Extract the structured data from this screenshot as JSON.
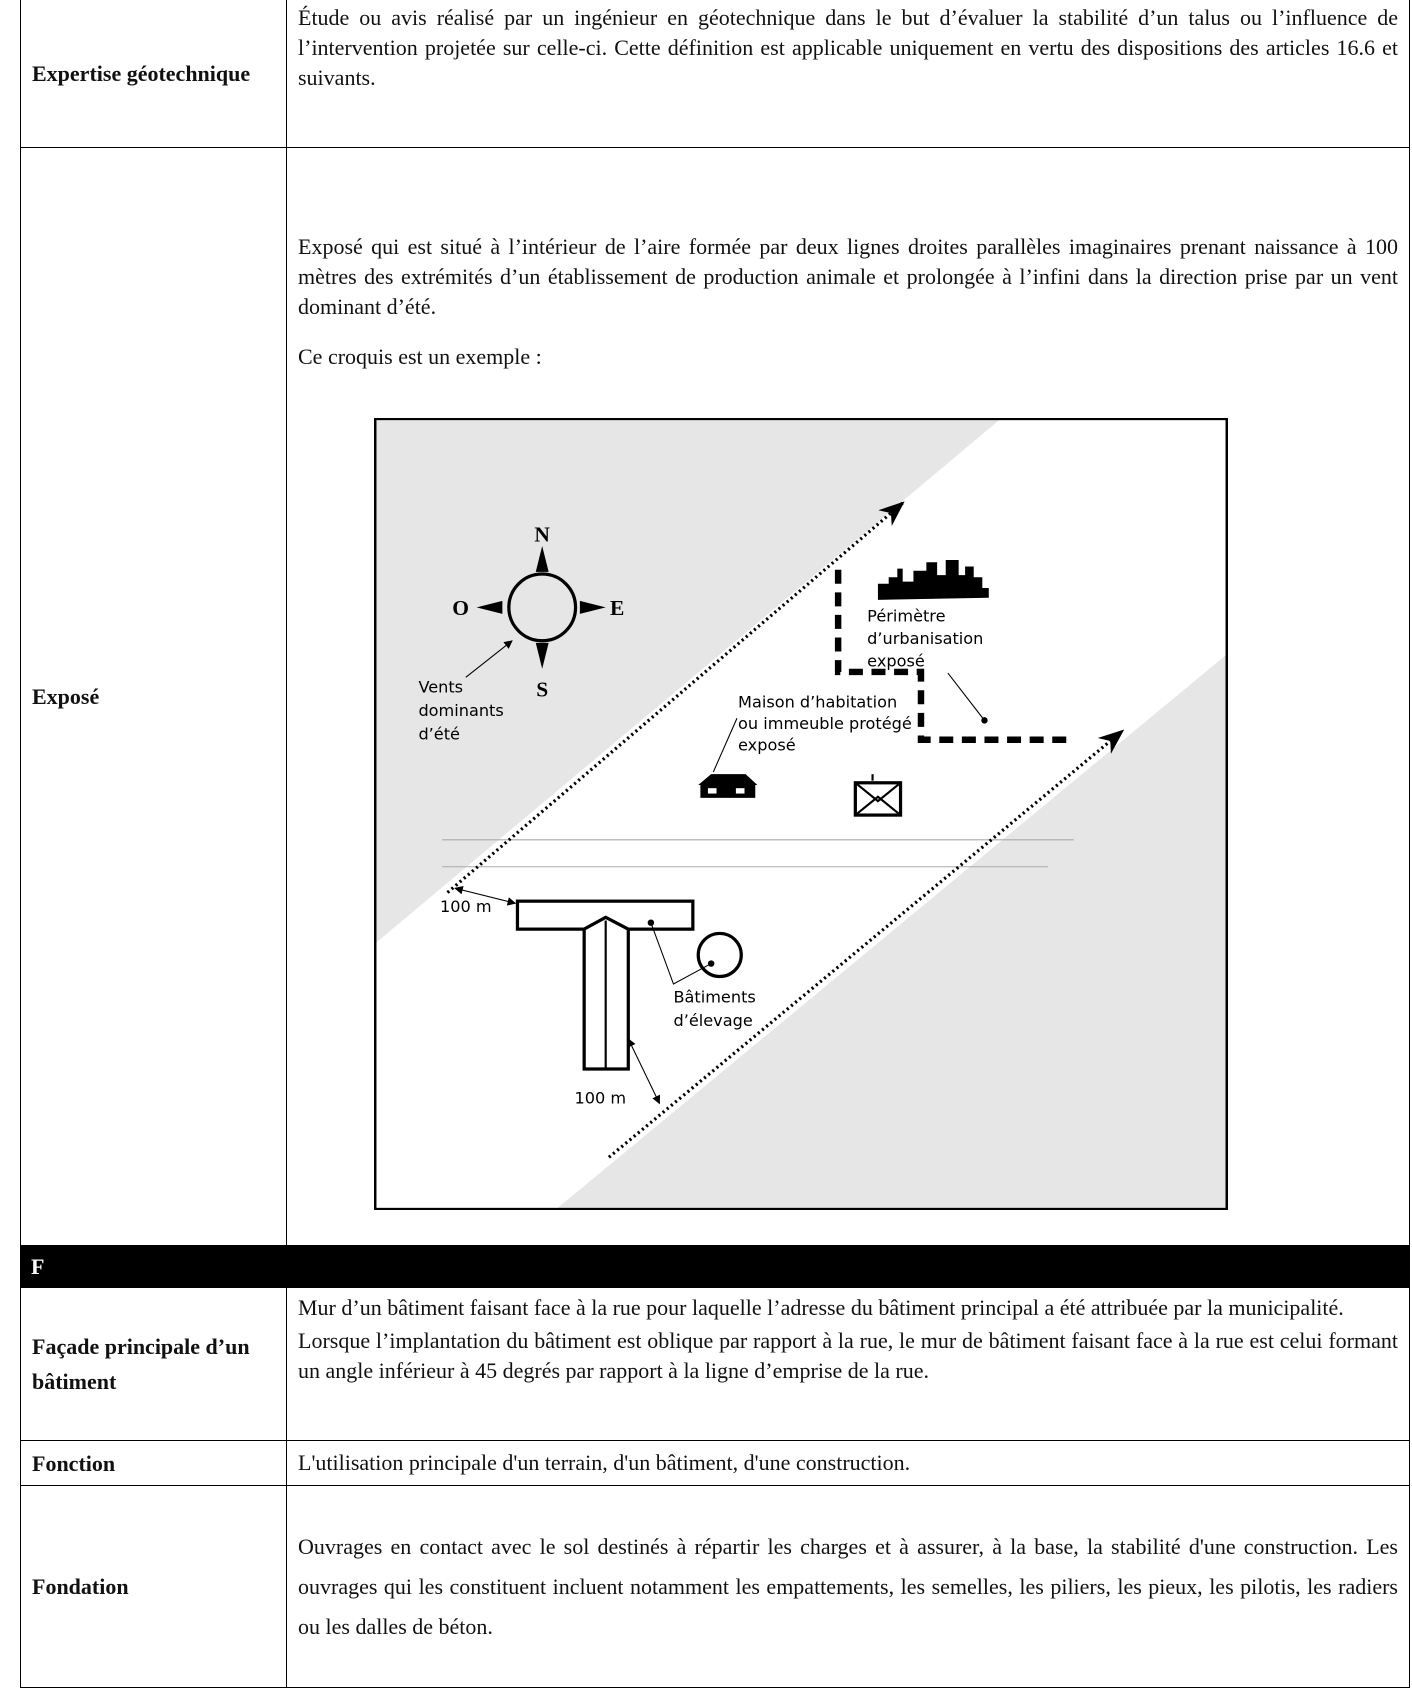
{
  "rows": [
    {
      "term": "Expertise géotechnique",
      "paragraphs": [
        "Étude ou avis réalisé par un ingénieur en géotechnique dans le but d’évaluer la stabilité d’un talus ou l’influence de l’intervention projetée sur celle-ci. Cette définition est applicable uniquement en vertu des dispositions des articles 16.6 et suivants."
      ]
    },
    {
      "term": "Exposé",
      "paragraphs": [
        "Exposé qui est situé à l’intérieur de l’aire formée par deux lignes droites parallèles imaginaires prenant naissance à 100 mètres des extrémités d’un établissement de production animale et prolongée à l’infini dans la direction prise par un vent dominant d’été.",
        "Ce croquis est un exemple :"
      ],
      "figure": {
        "north": "N",
        "west": "O",
        "east": "E",
        "south": "S",
        "winds": [
          "Vents",
          "dominants",
          "d’été"
        ],
        "urban": [
          "Périmètre",
          "d’urbanisation",
          "exposé"
        ],
        "house": [
          "Maison d’habitation",
          "ou immeuble protégé",
          "exposé"
        ],
        "distance_top": "100 m",
        "distance_bottom": "100 m",
        "farm": [
          "Bâtiments",
          "d’élevage"
        ]
      }
    },
    {
      "section": "F"
    },
    {
      "term": "Façade principale d’un bâtiment",
      "paragraphs": [
        "Mur d’un bâtiment faisant face à la rue pour laquelle l’adresse du bâtiment principal a été attribuée par la municipalité.",
        "Lorsque l’implantation du bâtiment est oblique par rapport à la rue, le mur de bâtiment faisant face à la rue est celui formant un angle inférieur à 45 degrés par rapport à la ligne d’emprise de la rue."
      ]
    },
    {
      "term": "Fonction",
      "paragraphs": [
        "L'utilisation principale d'un terrain, d'un bâtiment, d'une construction."
      ]
    },
    {
      "term": "Fondation",
      "paragraphs": [
        "Ouvrages en contact avec le sol destinés à répartir les charges et à assurer, à la base, la stabilité d'une construction. Les ouvrages qui les constituent incluent notamment les empattements, les semelles, les piliers, les pieux, les pilotis, les radiers ou les dalles de béton."
      ]
    }
  ]
}
